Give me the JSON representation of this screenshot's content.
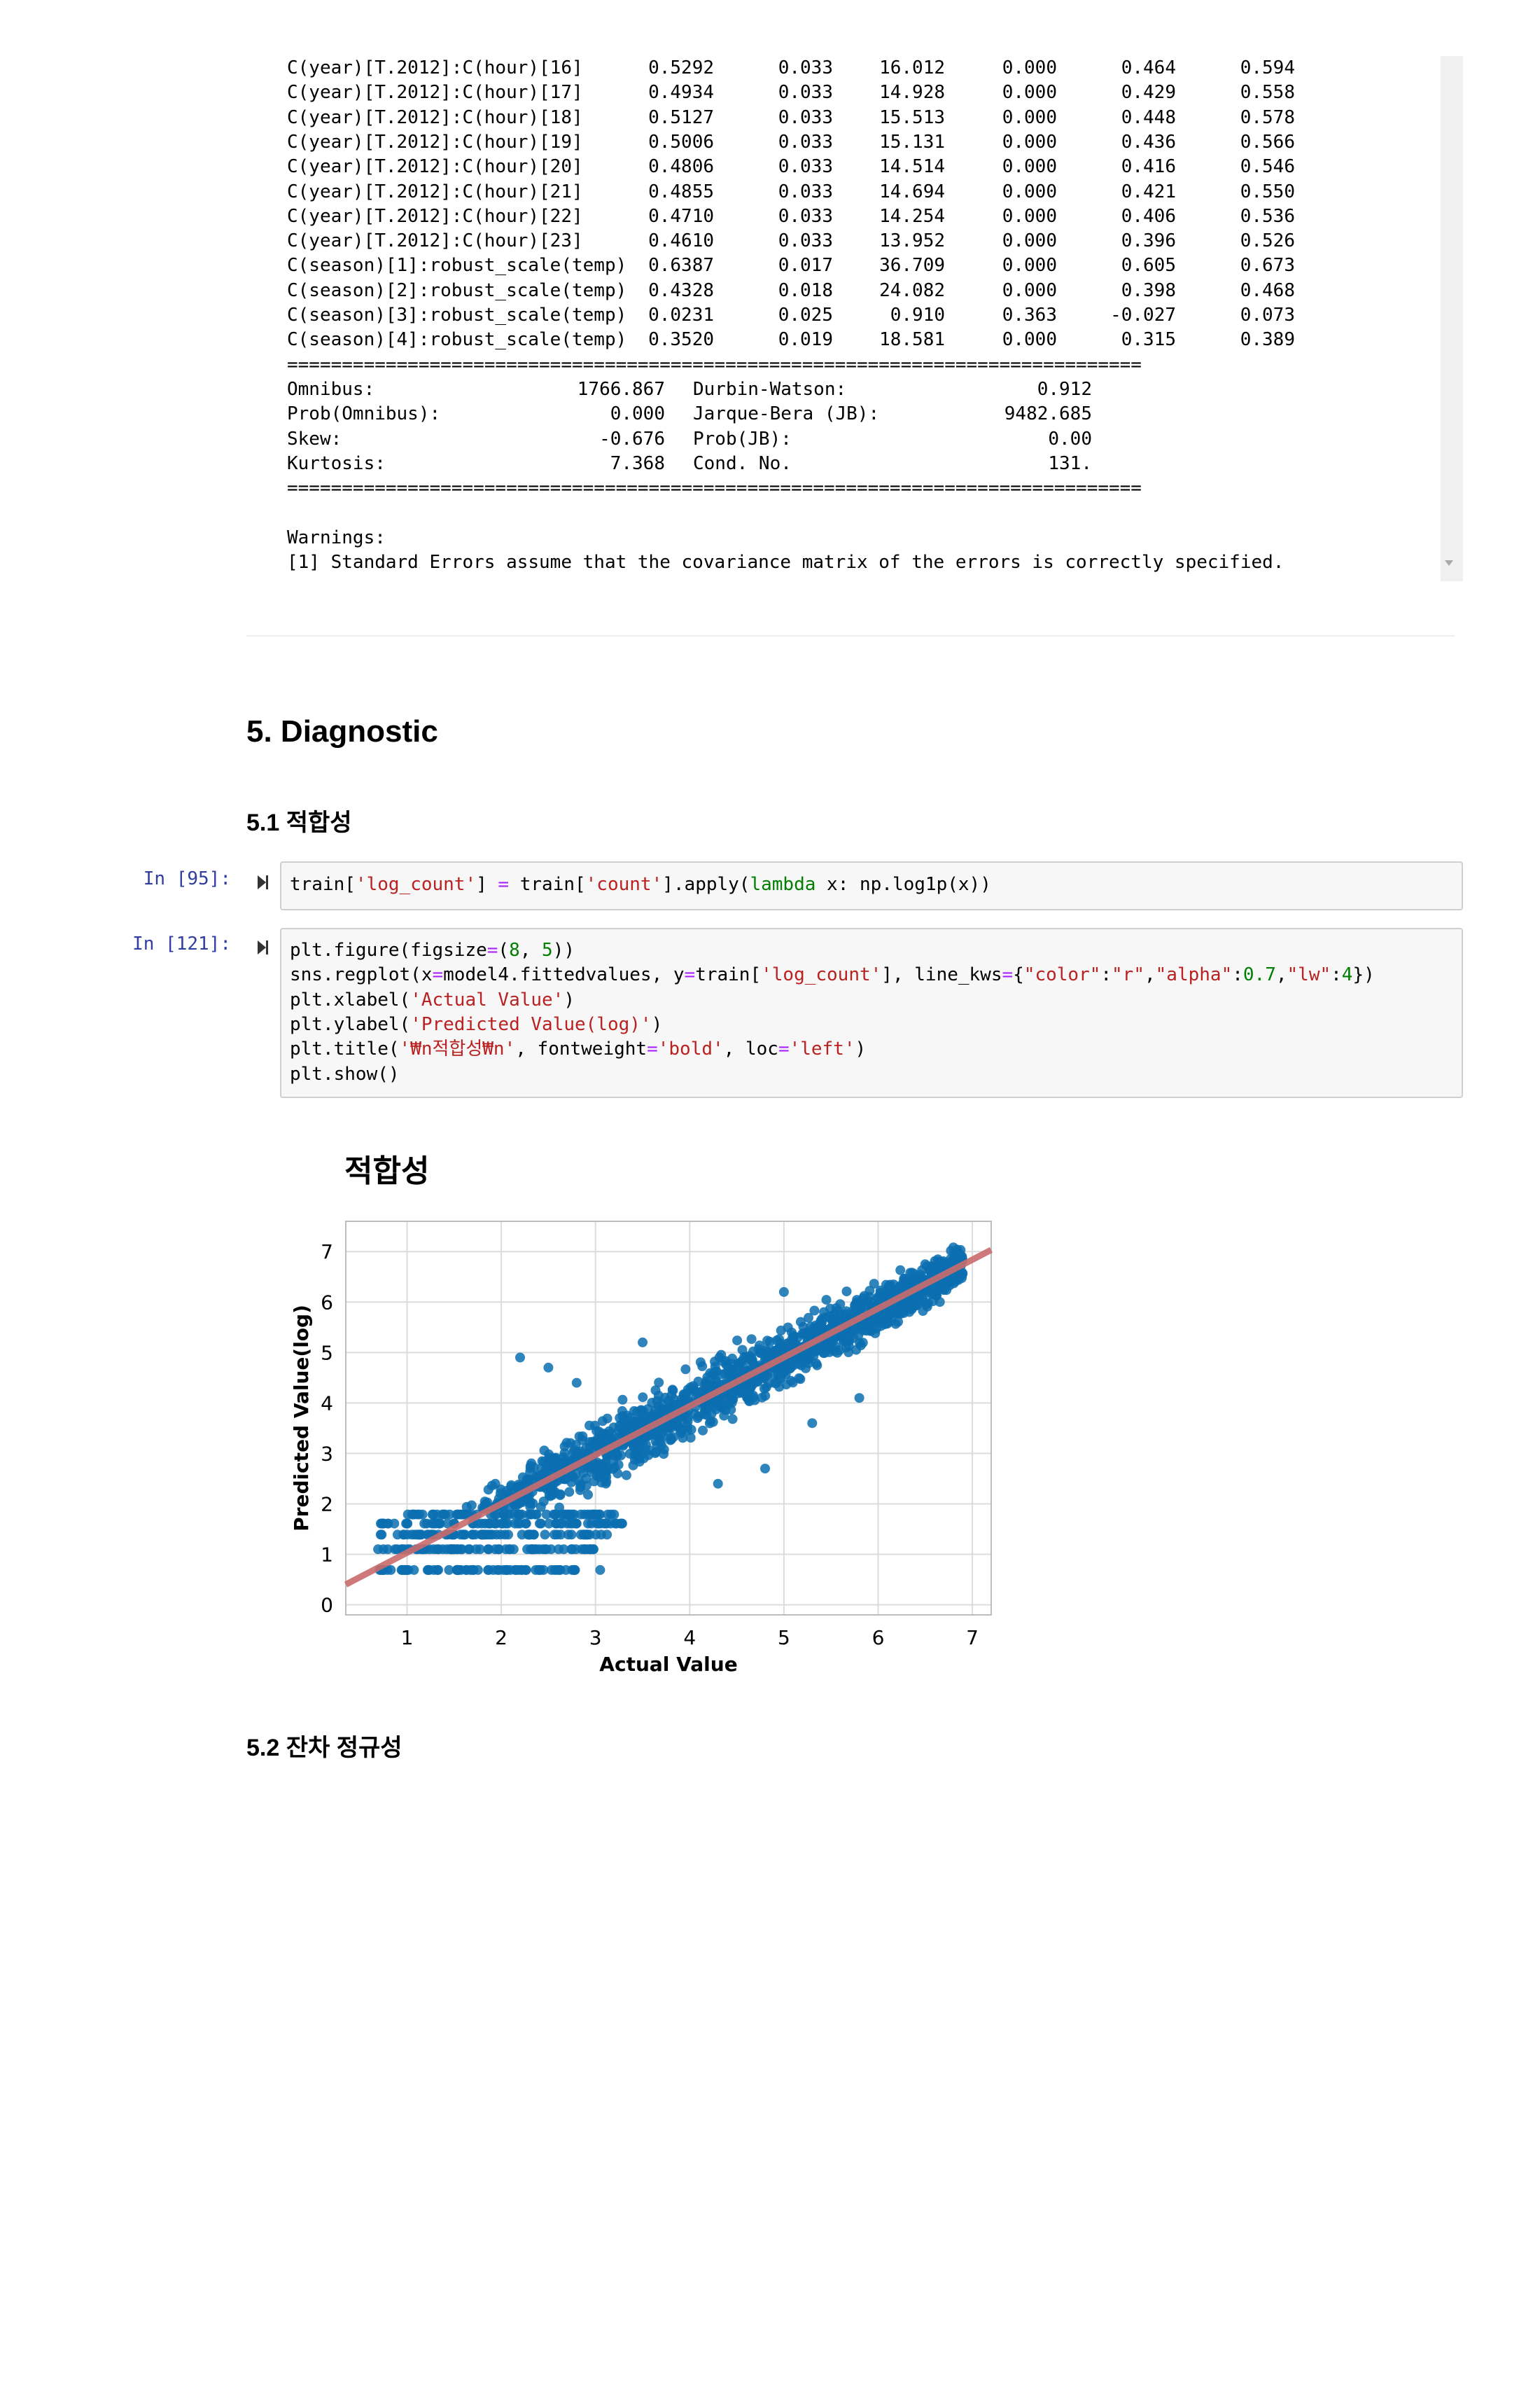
{
  "output": {
    "coef_rows": [
      {
        "name": "C(year)[T.2012]:C(hour)[16]",
        "coef": "0.5292",
        "std_err": "0.033",
        "t": "16.012",
        "p": "0.000",
        "ci_low": "0.464",
        "ci_high": "0.594"
      },
      {
        "name": "C(year)[T.2012]:C(hour)[17]",
        "coef": "0.4934",
        "std_err": "0.033",
        "t": "14.928",
        "p": "0.000",
        "ci_low": "0.429",
        "ci_high": "0.558"
      },
      {
        "name": "C(year)[T.2012]:C(hour)[18]",
        "coef": "0.5127",
        "std_err": "0.033",
        "t": "15.513",
        "p": "0.000",
        "ci_low": "0.448",
        "ci_high": "0.578"
      },
      {
        "name": "C(year)[T.2012]:C(hour)[19]",
        "coef": "0.5006",
        "std_err": "0.033",
        "t": "15.131",
        "p": "0.000",
        "ci_low": "0.436",
        "ci_high": "0.566"
      },
      {
        "name": "C(year)[T.2012]:C(hour)[20]",
        "coef": "0.4806",
        "std_err": "0.033",
        "t": "14.514",
        "p": "0.000",
        "ci_low": "0.416",
        "ci_high": "0.546"
      },
      {
        "name": "C(year)[T.2012]:C(hour)[21]",
        "coef": "0.4855",
        "std_err": "0.033",
        "t": "14.694",
        "p": "0.000",
        "ci_low": "0.421",
        "ci_high": "0.550"
      },
      {
        "name": "C(year)[T.2012]:C(hour)[22]",
        "coef": "0.4710",
        "std_err": "0.033",
        "t": "14.254",
        "p": "0.000",
        "ci_low": "0.406",
        "ci_high": "0.536"
      },
      {
        "name": "C(year)[T.2012]:C(hour)[23]",
        "coef": "0.4610",
        "std_err": "0.033",
        "t": "13.952",
        "p": "0.000",
        "ci_low": "0.396",
        "ci_high": "0.526"
      },
      {
        "name": "C(season)[1]:robust_scale(temp)",
        "coef": "0.6387",
        "std_err": "0.017",
        "t": "36.709",
        "p": "0.000",
        "ci_low": "0.605",
        "ci_high": "0.673"
      },
      {
        "name": "C(season)[2]:robust_scale(temp)",
        "coef": "0.4328",
        "std_err": "0.018",
        "t": "24.082",
        "p": "0.000",
        "ci_low": "0.398",
        "ci_high": "0.468"
      },
      {
        "name": "C(season)[3]:robust_scale(temp)",
        "coef": "0.0231",
        "std_err": "0.025",
        "t": "0.910",
        "p": "0.363",
        "ci_low": "-0.027",
        "ci_high": "0.073"
      },
      {
        "name": "C(season)[4]:robust_scale(temp)",
        "coef": "0.3520",
        "std_err": "0.019",
        "t": "18.581",
        "p": "0.000",
        "ci_low": "0.315",
        "ci_high": "0.389"
      }
    ],
    "separator": "==============================================================================",
    "diagnostics": [
      {
        "l_label": "Omnibus:",
        "l_value": "1766.867",
        "r_label": "Durbin-Watson:",
        "r_value": "0.912"
      },
      {
        "l_label": "Prob(Omnibus):",
        "l_value": "0.000",
        "r_label": "Jarque-Bera (JB):",
        "r_value": "9482.685"
      },
      {
        "l_label": "Skew:",
        "l_value": "-0.676",
        "r_label": "Prob(JB):",
        "r_value": "0.00"
      },
      {
        "l_label": "Kurtosis:",
        "l_value": "7.368",
        "r_label": "Cond. No.",
        "r_value": "131."
      }
    ],
    "warnings_title": "Warnings:",
    "warning_1": "[1] Standard Errors assume that the covariance matrix of the errors is correctly specified."
  },
  "section": {
    "heading": "5. Diagnostic",
    "sub1": "5.1 적합성",
    "sub2": "5.2 잔차 정규성"
  },
  "cells": [
    {
      "prompt": "In [95]:",
      "lines": [
        [
          [
            "train[",
            ""
          ],
          [
            "'log_count'",
            "str"
          ],
          [
            "] ",
            ""
          ],
          [
            "=",
            "op"
          ],
          [
            " train[",
            ""
          ],
          [
            "'count'",
            "str"
          ],
          [
            "].apply(",
            ""
          ],
          [
            "lambda",
            "kw"
          ],
          [
            " x: np.log1p(x))",
            ""
          ]
        ]
      ]
    },
    {
      "prompt": "In [121]:",
      "lines": [
        [
          [
            "plt.figure(figsize",
            ""
          ],
          [
            "=",
            "op"
          ],
          [
            "(",
            ""
          ],
          [
            "8",
            "num"
          ],
          [
            ", ",
            ""
          ],
          [
            "5",
            "num"
          ],
          [
            "))",
            ""
          ]
        ],
        [
          [
            "sns.regplot(x",
            ""
          ],
          [
            "=",
            "op"
          ],
          [
            "model4.fittedvalues, y",
            ""
          ],
          [
            "=",
            "op"
          ],
          [
            "train[",
            ""
          ],
          [
            "'log_count'",
            "str"
          ],
          [
            "], line_kws",
            ""
          ],
          [
            "=",
            "op"
          ],
          [
            "{",
            ""
          ],
          [
            "\"color\"",
            "str"
          ],
          [
            ":",
            ""
          ],
          [
            "\"r\"",
            "str"
          ],
          [
            ",",
            ""
          ],
          [
            "\"alpha\"",
            "str"
          ],
          [
            ":",
            ""
          ],
          [
            "0.7",
            "num"
          ],
          [
            ",",
            ""
          ],
          [
            "\"lw\"",
            "str"
          ],
          [
            ":",
            ""
          ],
          [
            "4",
            "num"
          ],
          [
            "})",
            ""
          ]
        ],
        [
          [
            "plt.xlabel(",
            ""
          ],
          [
            "'Actual Value'",
            "str"
          ],
          [
            ")",
            ""
          ]
        ],
        [
          [
            "plt.ylabel(",
            ""
          ],
          [
            "'Predicted Value(log)'",
            "str"
          ],
          [
            ")",
            ""
          ]
        ],
        [
          [
            "plt.title(",
            ""
          ],
          [
            "'₩n적합성₩n'",
            "str"
          ],
          [
            ", fontweight",
            ""
          ],
          [
            "=",
            "op"
          ],
          [
            "'bold'",
            "str"
          ],
          [
            ", loc",
            ""
          ],
          [
            "=",
            "op"
          ],
          [
            "'left'",
            "str"
          ],
          [
            ")",
            ""
          ]
        ],
        [
          [
            "plt.show()",
            ""
          ]
        ]
      ]
    }
  ],
  "chart_data": {
    "type": "scatter",
    "title": "적합성",
    "xlabel": "Actual Value",
    "ylabel": "Predicted Value(log)",
    "xlim": [
      0.35,
      7.2
    ],
    "ylim": [
      -0.2,
      7.6
    ],
    "xticks": [
      "1",
      "2",
      "3",
      "4",
      "5",
      "6",
      "7"
    ],
    "yticks": [
      "0",
      "1",
      "2",
      "3",
      "4",
      "5",
      "6",
      "7"
    ],
    "grid": true,
    "colors": {
      "points": "#0a6eb0",
      "line": "#c96b6b",
      "grid": "#dcdcdc"
    },
    "regression_line": {
      "slope": 0.968,
      "intercept": 0.064
    },
    "point_trend": {
      "x_range": [
        0.69,
        6.9
      ],
      "slope": 0.97,
      "intercept": 0.05
    },
    "floor_rows": [
      {
        "y": 0.69,
        "x_range": [
          0.69,
          2.8
        ]
      },
      {
        "y": 1.1,
        "x_range": [
          0.69,
          3.0
        ]
      },
      {
        "y": 1.39,
        "x_range": [
          0.69,
          3.2
        ]
      },
      {
        "y": 1.61,
        "x_range": [
          0.69,
          3.3
        ]
      },
      {
        "y": 1.79,
        "x_range": [
          1.0,
          3.2
        ]
      }
    ]
  }
}
